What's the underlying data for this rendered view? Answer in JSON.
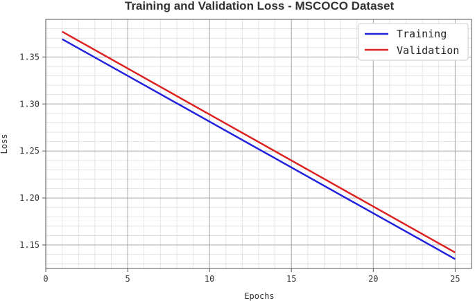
{
  "chart_data": {
    "type": "line",
    "title": "Training and Validation Loss - MSCOCO Dataset",
    "xlabel": "Epochs",
    "ylabel": "Loss",
    "xlim": [
      0,
      26
    ],
    "ylim": [
      1.125,
      1.39
    ],
    "xticks": [
      0,
      5,
      10,
      15,
      20,
      25
    ],
    "xtick_labels": [
      "0",
      "5",
      "10",
      "15",
      "20",
      "25"
    ],
    "yticks": [
      1.15,
      1.2,
      1.25,
      1.3,
      1.35
    ],
    "ytick_labels": [
      "1.15",
      "1.20",
      "1.25",
      "1.30",
      "1.35"
    ],
    "x_minor_step": 1,
    "y_minor_step": 0.01,
    "grid": true,
    "legend_position": "top-right",
    "series": [
      {
        "name": "Training",
        "color": "#2222dd",
        "x": [
          1,
          25
        ],
        "values": [
          1.369,
          1.135
        ]
      },
      {
        "name": "Validation",
        "color": "#dd2222",
        "x": [
          1,
          25
        ],
        "values": [
          1.377,
          1.142
        ]
      }
    ]
  }
}
